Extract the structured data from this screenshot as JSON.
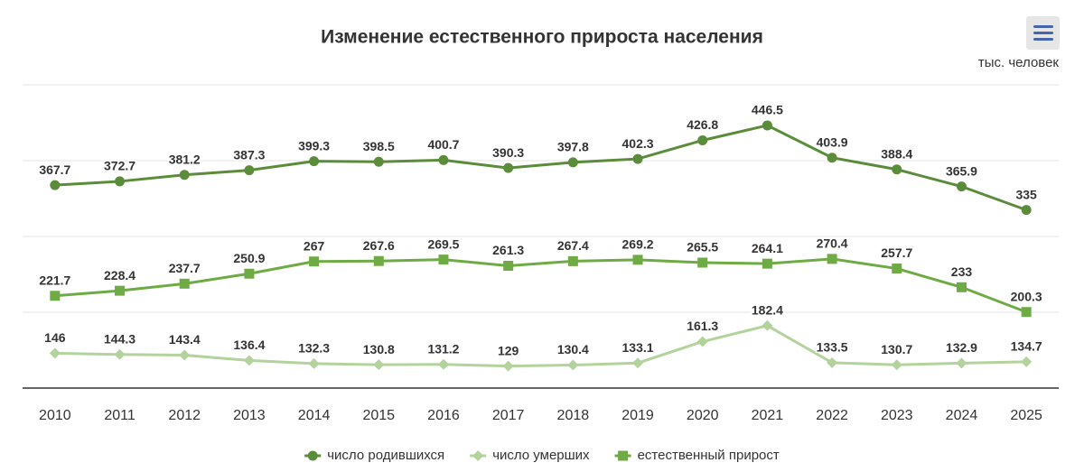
{
  "chart_data": {
    "type": "line",
    "title": "Изменение естественного прироста населения",
    "y_label": "тыс. человек",
    "categories": [
      "2010",
      "2011",
      "2012",
      "2013",
      "2014",
      "2015",
      "2016",
      "2017",
      "2018",
      "2019",
      "2020",
      "2021",
      "2022",
      "2023",
      "2024",
      "2025"
    ],
    "series": [
      {
        "name": "число родившихся",
        "color": "#5b8c3a",
        "marker": "circle",
        "values": [
          367.7,
          372.7,
          381.2,
          387.3,
          399.3,
          398.5,
          400.7,
          390.3,
          397.8,
          402.3,
          426.8,
          446.5,
          403.9,
          388.4,
          365.9,
          335
        ]
      },
      {
        "name": "число умерших",
        "color": "#b3d39c",
        "marker": "diamond",
        "values": [
          146,
          144.3,
          143.4,
          136.4,
          132.3,
          130.8,
          131.2,
          129,
          130.4,
          133.1,
          161.3,
          182.4,
          133.5,
          130.7,
          132.9,
          134.7
        ]
      },
      {
        "name": "естественный прирост",
        "color": "#6fab45",
        "marker": "square",
        "values": [
          221.7,
          228.4,
          237.7,
          250.9,
          267,
          267.6,
          269.5,
          261.3,
          267.4,
          269.2,
          265.5,
          264.1,
          270.4,
          257.7,
          233,
          200.3
        ]
      }
    ],
    "ylim": [
      100,
      500
    ],
    "yticks": [
      100,
      200,
      300,
      400,
      500
    ],
    "grid": true,
    "legend": "bottom"
  }
}
